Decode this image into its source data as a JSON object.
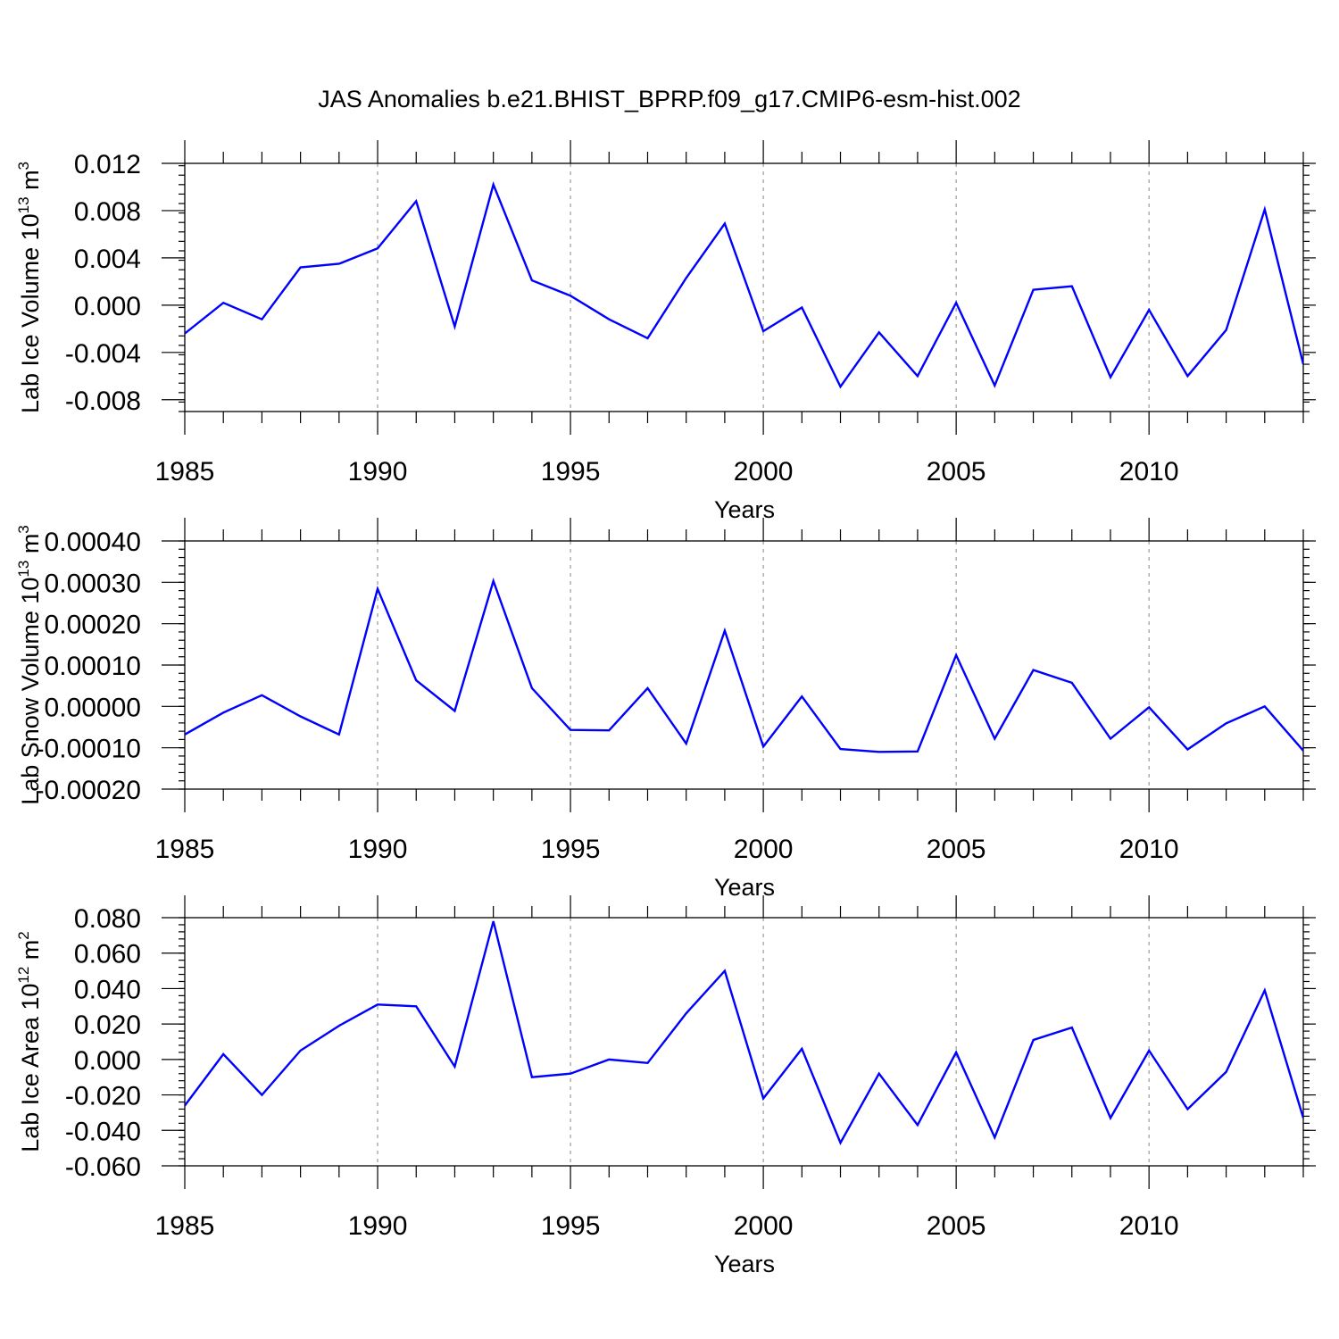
{
  "title": "JAS Anomalies b.e21.BHIST_BPRP.f09_g17.CMIP6-esm-hist.002",
  "line_color": "#0000ff",
  "chart_data": [
    {
      "type": "line",
      "title": "",
      "xlabel": "Years",
      "ylabel": "Lab Ice Volume 10",
      "ylabel_exp": "13",
      "ylabel_unit": " m",
      "ylabel_unit_exp": "3",
      "xlim": [
        1985,
        2014
      ],
      "ylim": [
        -0.009,
        0.012
      ],
      "x_ticks": [
        1985,
        1990,
        1995,
        2000,
        2005,
        2010
      ],
      "x_tick_labels": [
        "1985",
        "1990",
        "1995",
        "2000",
        "2005",
        "2010"
      ],
      "y_ticks": [
        -0.008,
        -0.004,
        0.0,
        0.004,
        0.008,
        0.012
      ],
      "y_tick_labels": [
        "-0.008",
        "-0.004",
        "0.000",
        "0.004",
        "0.008",
        "0.012"
      ],
      "grid": "vertical dashed at major x ticks",
      "x": [
        1985,
        1986,
        1987,
        1988,
        1989,
        1990,
        1991,
        1992,
        1993,
        1994,
        1995,
        1996,
        1997,
        1998,
        1999,
        2000,
        2001,
        2002,
        2003,
        2004,
        2005,
        2006,
        2007,
        2008,
        2009,
        2010,
        2011,
        2012,
        2013,
        2014
      ],
      "series": [
        {
          "values": [
            -0.0024,
            0.0002,
            -0.0012,
            0.0032,
            0.0035,
            0.0048,
            0.0088,
            -0.0018,
            0.0102,
            0.0021,
            0.0008,
            -0.0012,
            -0.0028,
            0.0023,
            0.0069,
            -0.0022,
            -0.0002,
            -0.0069,
            -0.0023,
            -0.006,
            0.0002,
            -0.0068,
            0.0013,
            0.0016,
            -0.0061,
            -0.0004,
            -0.006,
            -0.0021,
            0.0081,
            -0.005
          ]
        }
      ]
    },
    {
      "type": "line",
      "title": "",
      "xlabel": "Years",
      "ylabel": "Lab Snow Volume 10",
      "ylabel_exp": "13",
      "ylabel_unit": " m",
      "ylabel_unit_exp": "3",
      "xlim": [
        1985,
        2014
      ],
      "ylim": [
        -0.0002,
        0.0004
      ],
      "x_ticks": [
        1985,
        1990,
        1995,
        2000,
        2005,
        2010
      ],
      "x_tick_labels": [
        "1985",
        "1990",
        "1995",
        "2000",
        "2005",
        "2010"
      ],
      "y_ticks": [
        -0.0002,
        -0.0001,
        0.0,
        0.0001,
        0.0002,
        0.0003,
        0.0004
      ],
      "y_tick_labels": [
        "-0.00020",
        "-0.00010",
        "0.00000",
        "0.00010",
        "0.00020",
        "0.00030",
        "0.00040"
      ],
      "grid": "vertical dashed at major x ticks",
      "x": [
        1985,
        1986,
        1987,
        1988,
        1989,
        1990,
        1991,
        1992,
        1993,
        1994,
        1995,
        1996,
        1997,
        1998,
        1999,
        2000,
        2001,
        2002,
        2003,
        2004,
        2005,
        2006,
        2007,
        2008,
        2009,
        2010,
        2011,
        2012,
        2013,
        2014
      ],
      "series": [
        {
          "values": [
            -6.8e-05,
            -1.5e-05,
            2.7e-05,
            -2.4e-05,
            -6.8e-05,
            0.000284,
            6.3e-05,
            -1.1e-05,
            0.000303,
            4.4e-05,
            -5.7e-05,
            -5.8e-05,
            4.4e-05,
            -9e-05,
            0.000183,
            -9.7e-05,
            2.4e-05,
            -0.000103,
            -0.00011,
            -0.000109,
            0.000124,
            -7.8e-05,
            8.8e-05,
            5.7e-05,
            -7.8e-05,
            -2e-06,
            -0.000104,
            -4.1e-05,
            0.0,
            -0.000107
          ]
        }
      ]
    },
    {
      "type": "line",
      "title": "",
      "xlabel": "Years",
      "ylabel": "Lab Ice Area 10",
      "ylabel_exp": "12",
      "ylabel_unit": " m",
      "ylabel_unit_exp": "2",
      "xlim": [
        1985,
        2014
      ],
      "ylim": [
        -0.06,
        0.08
      ],
      "x_ticks": [
        1985,
        1990,
        1995,
        2000,
        2005,
        2010
      ],
      "x_tick_labels": [
        "1985",
        "1990",
        "1995",
        "2000",
        "2005",
        "2010"
      ],
      "y_ticks": [
        -0.06,
        -0.04,
        -0.02,
        0.0,
        0.02,
        0.04,
        0.06,
        0.08
      ],
      "y_tick_labels": [
        "-0.060",
        "-0.040",
        "-0.020",
        "0.000",
        "0.020",
        "0.040",
        "0.060",
        "0.080"
      ],
      "grid": "vertical dashed at major x ticks",
      "x": [
        1985,
        1986,
        1987,
        1988,
        1989,
        1990,
        1991,
        1992,
        1993,
        1994,
        1995,
        1996,
        1997,
        1998,
        1999,
        2000,
        2001,
        2002,
        2003,
        2004,
        2005,
        2006,
        2007,
        2008,
        2009,
        2010,
        2011,
        2012,
        2013,
        2014
      ],
      "series": [
        {
          "values": [
            -0.026,
            0.003,
            -0.02,
            0.005,
            0.019,
            0.031,
            0.03,
            -0.004,
            0.078,
            -0.01,
            -0.008,
            0.0,
            -0.002,
            0.026,
            0.05,
            -0.022,
            0.006,
            -0.047,
            -0.008,
            -0.037,
            0.004,
            -0.044,
            0.011,
            0.018,
            -0.033,
            0.005,
            -0.028,
            -0.007,
            0.039,
            -0.033
          ]
        }
      ]
    }
  ]
}
